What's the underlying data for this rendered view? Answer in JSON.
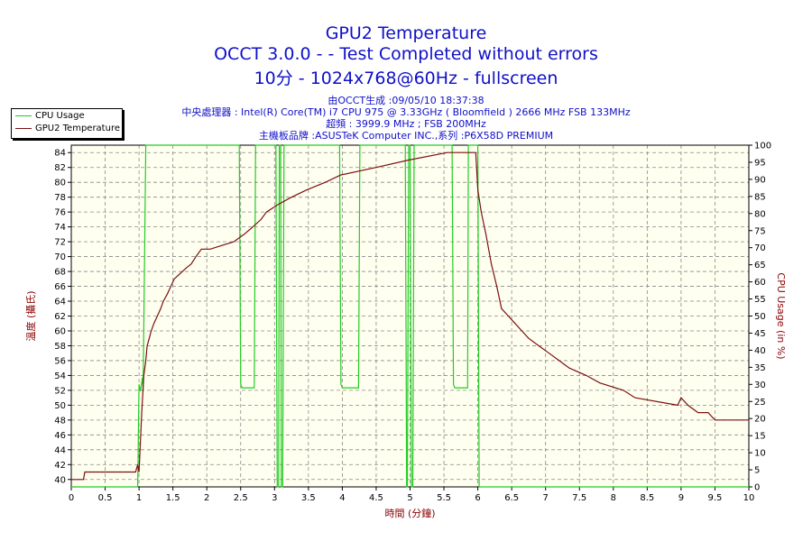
{
  "colors": {
    "title": "#1010c8",
    "axis_left": "#8b0000",
    "cpu": "#22cc22",
    "gpu": "#7a1010",
    "plot_bg": "#fffff0",
    "grid": "#888888"
  },
  "chart_data": {
    "type": "line",
    "title": "GPU2 Temperature",
    "subtitle_lines": [
      "OCCT 3.0.0 -  - Test Completed without errors",
      "10分 - 1024x768@60Hz - fullscreen"
    ],
    "info_lines": [
      "由OCCT生成 :09/05/10 18:37:38",
      "中央處理器 : Intel(R) Core(TM) i7 CPU 975 @ 3.33GHz ( Bloomfield ) 2666 MHz FSB 133MHz",
      "超頻 : 3999.9 MHz ; FSB 200MHz",
      "主機板品牌 :ASUSTeK Computer INC.,系列 :P6X58D PREMIUM"
    ],
    "xlabel": "時間 (分鐘)",
    "ylabel": "溫度 (攝氏)",
    "y2label": "CPU Usage (in %)",
    "xlim": [
      0,
      10
    ],
    "ylim": [
      39,
      85
    ],
    "y2lim": [
      0,
      100
    ],
    "x_ticks": [
      "0",
      "0.5",
      "1",
      "1.5",
      "2",
      "2.5",
      "3",
      "3.5",
      "4",
      "4.5",
      "5",
      "5.5",
      "6",
      "6.5",
      "7",
      "7.5",
      "8",
      "8.5",
      "9",
      "9.5",
      "10"
    ],
    "y_ticks": [
      "40",
      "42",
      "44",
      "46",
      "48",
      "50",
      "52",
      "54",
      "56",
      "58",
      "60",
      "62",
      "64",
      "66",
      "68",
      "70",
      "72",
      "74",
      "76",
      "78",
      "80",
      "82",
      "84"
    ],
    "y2_ticks": [
      "0",
      "5",
      "10",
      "15",
      "20",
      "25",
      "30",
      "35",
      "40",
      "45",
      "50",
      "55",
      "60",
      "65",
      "70",
      "75",
      "80",
      "85",
      "90",
      "95",
      "100"
    ],
    "grid": true,
    "legend_position": "top-left",
    "series": [
      {
        "name": "CPU Usage",
        "axis": "right",
        "x": [
          0,
          0.98,
          1.0,
          1.02,
          1.05,
          1.06,
          1.1,
          1.12,
          2.48,
          2.5,
          2.52,
          2.53,
          2.66,
          2.68,
          2.7,
          2.72,
          3.02,
          3.04,
          3.06,
          3.07,
          3.09,
          3.1,
          3.12,
          3.14,
          3.96,
          3.98,
          4.0,
          4.03,
          4.2,
          4.22,
          4.24,
          4.26,
          4.93,
          4.95,
          4.96,
          4.98,
          5.0,
          5.02,
          5.04,
          5.06,
          5.62,
          5.64,
          5.66,
          5.68,
          5.8,
          5.82,
          5.85,
          5.86,
          6.0,
          6.02,
          10
        ],
        "y": [
          0,
          0,
          30,
          28,
          32,
          28,
          100,
          100,
          100,
          30,
          29,
          29,
          29,
          29,
          29,
          100,
          100,
          0,
          0,
          100,
          100,
          0,
          0,
          100,
          100,
          30,
          29,
          29,
          29,
          29,
          29,
          100,
          100,
          0,
          0,
          100,
          100,
          0,
          0,
          100,
          100,
          30,
          29,
          29,
          29,
          29,
          29,
          100,
          100,
          0,
          0
        ]
      },
      {
        "name": "GPU2 Temperature",
        "axis": "left",
        "x": [
          0,
          0.18,
          0.2,
          0.95,
          0.98,
          1.0,
          1.04,
          1.07,
          1.1,
          1.12,
          1.15,
          1.18,
          1.22,
          1.27,
          1.32,
          1.36,
          1.42,
          1.47,
          1.52,
          1.58,
          1.64,
          1.7,
          1.77,
          1.84,
          1.92,
          2.05,
          2.4,
          2.55,
          2.68,
          2.8,
          2.88,
          3.05,
          3.25,
          3.48,
          3.75,
          3.98,
          4.5,
          4.98,
          5.55,
          5.95,
          5.97,
          6.0,
          6.05,
          6.12,
          6.2,
          6.28,
          6.35,
          6.45,
          6.55,
          6.65,
          6.75,
          6.9,
          7.05,
          7.2,
          7.35,
          7.6,
          7.8,
          8.15,
          8.32,
          8.95,
          9.0,
          9.1,
          9.25,
          9.4,
          9.5,
          10
        ],
        "y": [
          40,
          40,
          41,
          41,
          42,
          41,
          49,
          54,
          56,
          58,
          59,
          60,
          61,
          62,
          63,
          64,
          65,
          66,
          67,
          67.5,
          68,
          68.5,
          69,
          70,
          71,
          71,
          72,
          73,
          74,
          75,
          76,
          77,
          78,
          79,
          80,
          81,
          82,
          83,
          84,
          84,
          84,
          79,
          76,
          73,
          69,
          66,
          63,
          62,
          61,
          60,
          59,
          58,
          57,
          56,
          55,
          54,
          53,
          52,
          51,
          50,
          51,
          50,
          49,
          49,
          48,
          48
        ]
      }
    ]
  }
}
